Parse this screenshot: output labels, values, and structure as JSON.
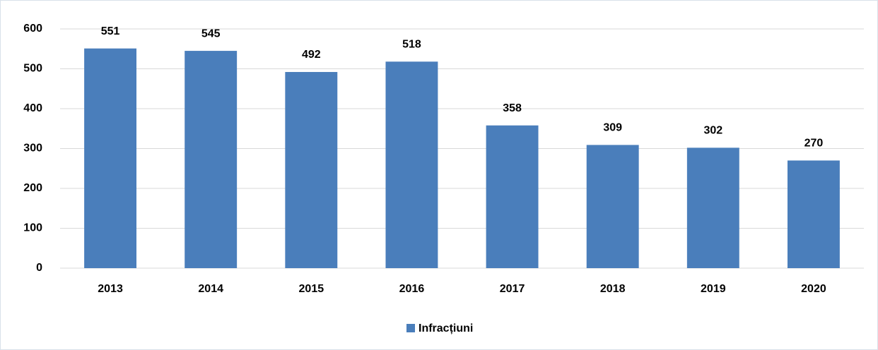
{
  "chart_data": {
    "type": "bar",
    "categories": [
      "2013",
      "2014",
      "2015",
      "2016",
      "2017",
      "2018",
      "2019",
      "2020"
    ],
    "series": [
      {
        "name": "Infracțiuni",
        "color": "#4a7ebb",
        "values": [
          551,
          545,
          492,
          518,
          358,
          309,
          302,
          270
        ]
      }
    ],
    "ylim": [
      0,
      600
    ],
    "yticks": [
      0,
      100,
      200,
      300,
      400,
      500,
      600
    ],
    "grid": true,
    "legend": "bottom"
  }
}
